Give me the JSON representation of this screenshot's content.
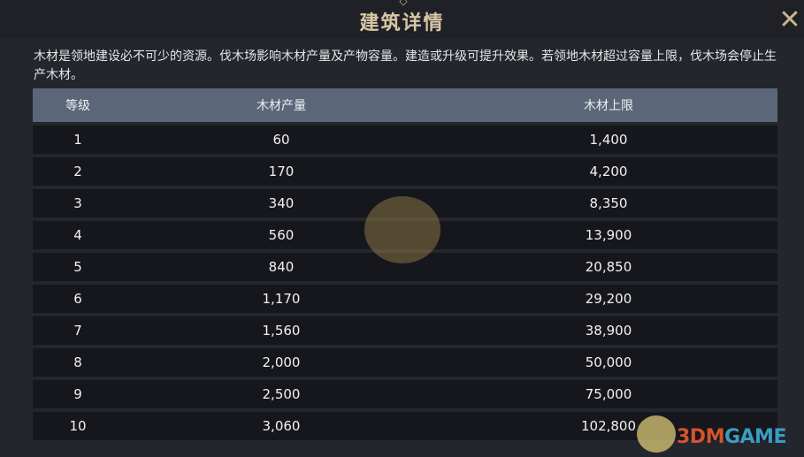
{
  "header": {
    "title": "建筑详情",
    "close_icon": "close-icon"
  },
  "description": "木材是领地建设必不可少的资源。伐木场影响木材产量及产物容量。建造或升级可提升效果。若领地木材超过容量上限，伐木场会停止生产木材。",
  "table": {
    "columns": [
      "等级",
      "木材产量",
      "木材上限"
    ],
    "rows": [
      [
        "1",
        "60",
        "1,400"
      ],
      [
        "2",
        "170",
        "4,200"
      ],
      [
        "3",
        "340",
        "8,350"
      ],
      [
        "4",
        "560",
        "13,900"
      ],
      [
        "5",
        "840",
        "20,850"
      ],
      [
        "6",
        "1,170",
        "29,200"
      ],
      [
        "7",
        "1,560",
        "38,900"
      ],
      [
        "8",
        "2,000",
        "50,000"
      ],
      [
        "9",
        "2,500",
        "75,000"
      ],
      [
        "10",
        "3,060",
        "102,800"
      ]
    ]
  },
  "watermark": {
    "part1": "3DM",
    "part2": "GAME"
  },
  "colors": {
    "title": "#d9c7a4",
    "header_row": "#5b6779",
    "row_bg": "#16171c",
    "background": "#24262d"
  }
}
